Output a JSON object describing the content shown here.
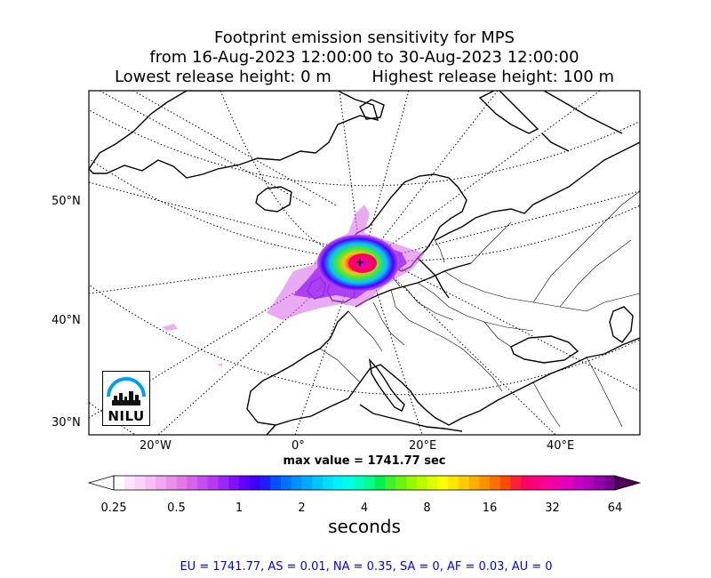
{
  "title": {
    "line1": "Footprint emission sensitivity for MPS",
    "line2": "from 16-Aug-2023 12:00:00 to 30-Aug-2023 12:00:00",
    "line3_left": "Lowest release height: 0 m",
    "line3_right": "Highest release height: 100 m"
  },
  "map": {
    "lat_labels": [
      "50°N",
      "40°N",
      "30°N"
    ],
    "lon_labels": [
      "20°W",
      "0°",
      "20°E",
      "40°E"
    ],
    "max_value_text": "max value = 1741.77 sec",
    "logo_text": "NILU",
    "release_site_icon": "cross-marker-icon"
  },
  "colorbar": {
    "tick_labels": [
      "0.25",
      "0.5",
      "1",
      "2",
      "4",
      "8",
      "16",
      "32",
      "64"
    ],
    "units": "seconds",
    "colors": [
      "#ffffff",
      "#fde6fd",
      "#fad2fa",
      "#f6bef6",
      "#f1a8f1",
      "#ea90ea",
      "#e27ae6",
      "#d862e9",
      "#c84df0",
      "#b43af2",
      "#9c26f5",
      "#8112f8",
      "#6100fa",
      "#3e00fb",
      "#1e1efc",
      "#0050ff",
      "#0073ff",
      "#0091ff",
      "#00aaff",
      "#00c4ff",
      "#00dcff",
      "#00f2ff",
      "#00ffe6",
      "#00ffbe",
      "#00ff8c",
      "#00f050",
      "#3df22c",
      "#6af510",
      "#94f800",
      "#bafb00",
      "#ddfd00",
      "#ffff00",
      "#ffe600",
      "#ffcc00",
      "#ffb000",
      "#ff9200",
      "#ff7000",
      "#ff4a00",
      "#ff1e3c",
      "#ff0064",
      "#ff0082",
      "#fa0098",
      "#ee00ac",
      "#de00bc",
      "#c800c3",
      "#b000bb",
      "#9400a8",
      "#760090"
    ],
    "under_color": "#ffffff",
    "over_color": "#50005a"
  },
  "stats_line": "EU = 1741.77,  AS = 0.01,  NA = 0.35,  SA = 0,  AF = 0.03,  AU = 0",
  "colors": {
    "stats": "#0000ff",
    "logo_accent": "#00a0e8"
  }
}
